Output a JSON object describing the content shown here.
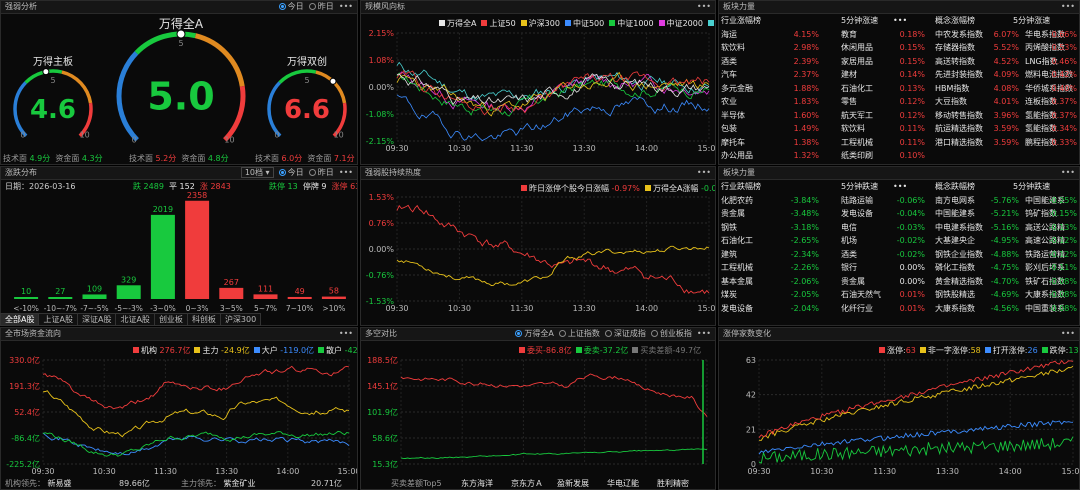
{
  "p1": {
    "title": "强弱分析",
    "today": "今日",
    "yesterday": "昨日",
    "gauges": [
      {
        "title": "万得主板",
        "value": "4.6",
        "color": "#18c93e",
        "level": 0.46,
        "zero": "0",
        "five": "5",
        "ten": "10"
      },
      {
        "title": "万得全A",
        "value": "5.0",
        "color": "#18c93e",
        "level": 0.5,
        "zero": "0",
        "five": "5",
        "ten": "10"
      },
      {
        "title": "万得双创",
        "value": "6.6",
        "color": "#f03c3c",
        "level": 0.66,
        "zero": "0",
        "five": "5",
        "ten": "10"
      }
    ],
    "foot": [
      {
        "tech": "技术面",
        "tv": "4.9分",
        "fund": "资金面",
        "fv": "4.3分",
        "tc": "#18c93e",
        "fc": "#18c93e"
      },
      {
        "tech": "技术面",
        "tv": "5.2分",
        "fund": "资金面",
        "fv": "4.8分",
        "tc": "#f03c3c",
        "fc": "#18c93e"
      },
      {
        "tech": "技术面",
        "tv": "6.0分",
        "fund": "资金面",
        "fv": "7.1分",
        "tc": "#f03c3c",
        "fc": "#f03c3c"
      }
    ]
  },
  "p2": {
    "title": "规模风向标",
    "legend": [
      {
        "name": "万得全A",
        "color": "#e6e6e6"
      },
      {
        "name": "上证50",
        "color": "#f03c3c"
      },
      {
        "name": "沪深300",
        "color": "#e8c21a"
      },
      {
        "name": "中证500",
        "color": "#3c8cff"
      },
      {
        "name": "中证1000",
        "color": "#18c93e"
      },
      {
        "name": "中证2000",
        "color": "#e03ce0"
      },
      {
        "name": "微盘股",
        "color": "#4ad0d0"
      }
    ],
    "yticks": [
      "2.15%",
      "1.08%",
      "0.00%",
      "-1.08%",
      "-2.15%"
    ],
    "xticks": [
      "09:30",
      "10:30",
      "11:30",
      "13:30",
      "14:00",
      "15:00"
    ]
  },
  "p3": {
    "title": "板块力量",
    "h": [
      "行业涨幅榜",
      "5分钟涨速",
      "概念涨幅榜",
      "5分钟涨速"
    ],
    "rows": [
      [
        "海运",
        "4.15%",
        "教育",
        "0.18%",
        "中农发系指数",
        "6.07%",
        "华电系指数",
        "0.66%"
      ],
      [
        "软饮料",
        "2.98%",
        "休闲用品",
        "0.15%",
        "存储器指数",
        "5.52%",
        "丙烯酸指数",
        "0.53%"
      ],
      [
        "酒类",
        "2.39%",
        "家居用品",
        "0.15%",
        "高送转指数",
        "4.52%",
        "LNG指数",
        "0.46%"
      ],
      [
        "汽车",
        "2.37%",
        "建材",
        "0.14%",
        "先进封装指数",
        "4.09%",
        "燃料电池指数",
        "0.42%"
      ],
      [
        "多元金融",
        "1.88%",
        "石油化工",
        "0.13%",
        "HBM指数",
        "4.08%",
        "华侨城系指数",
        "0.40%"
      ],
      [
        "农业",
        "1.83%",
        "零售",
        "0.12%",
        "大豆指数",
        "4.01%",
        "连板指数",
        "0.37%"
      ],
      [
        "半导体",
        "1.60%",
        "航天军工",
        "0.12%",
        "移动转售指数",
        "3.96%",
        "氢能指数",
        "0.37%"
      ],
      [
        "包装",
        "1.49%",
        "软饮料",
        "0.11%",
        "航运精选指数",
        "3.59%",
        "氢能指数",
        "0.34%"
      ],
      [
        "摩托车",
        "1.38%",
        "工程机械",
        "0.11%",
        "港口精选指数",
        "3.59%",
        "鹏程指数",
        "0.33%"
      ],
      [
        "办公用品",
        "1.32%",
        "纸类印刷",
        "0.10%",
        "",
        "",
        "",
        ""
      ]
    ]
  },
  "p4": {
    "title": "涨跌分布",
    "sel": "10档",
    "today": "今日",
    "yesterday": "昨日",
    "date": "日期：2026-03-16",
    "down_l": "跌",
    "down": "2489",
    "flat_l": "平",
    "flat": "152",
    "up_l": "涨",
    "up": "2843",
    "lim_down_l": "跌停",
    "lim_down": "13",
    "halt_l": "停牌",
    "halt": "9",
    "lim_up_l": "涨停",
    "lim_up": "63",
    "bars": [
      {
        "label": "<-10%",
        "value": 10,
        "txt": "10",
        "color": "#18c93e"
      },
      {
        "label": "-10~-7%",
        "value": 27,
        "txt": "27",
        "color": "#18c93e"
      },
      {
        "label": "-7~-5%",
        "value": 109,
        "txt": "109",
        "color": "#18c93e"
      },
      {
        "label": "-5~-3%",
        "value": 329,
        "txt": "329",
        "color": "#18c93e"
      },
      {
        "label": "-3~0%",
        "value": 2019,
        "txt": "2019",
        "color": "#18c93e"
      },
      {
        "label": "0~3%",
        "value": 2358,
        "txt": "2358",
        "color": "#f03c3c"
      },
      {
        "label": "3~5%",
        "value": 267,
        "txt": "267",
        "color": "#f03c3c"
      },
      {
        "label": "5~7%",
        "value": 111,
        "txt": "111",
        "color": "#f03c3c"
      },
      {
        "label": "7~10%",
        "value": 49,
        "txt": "49",
        "color": "#f03c3c"
      },
      {
        "label": ">10%",
        "value": 58,
        "txt": "58",
        "color": "#f03c3c"
      }
    ],
    "tabs": [
      "全部A股",
      "上证A股",
      "深证A股",
      "北证A股",
      "创业板",
      "科创板",
      "沪深300"
    ]
  },
  "p5": {
    "title": "强弱股持续热度",
    "l1": "昨日涨停个股今日涨幅",
    "v1": "-0.97%",
    "l2": "万得全A涨幅",
    "v2": "-0.05%",
    "yticks": [
      "1.53%",
      "0.76%",
      "0.00%",
      "-0.76%",
      "-1.53%"
    ],
    "xticks": [
      "09:30",
      "10:30",
      "11:30",
      "13:30",
      "14:00",
      "15:00"
    ]
  },
  "p6": {
    "title": "板块力量",
    "h": [
      "行业跌幅榜",
      "5分钟跌速",
      "概念跌幅榜",
      "5分钟跌速"
    ],
    "rows": [
      [
        "化肥农药",
        "-3.84%",
        "陆路运输",
        "-0.06%",
        "南方电网系",
        "-5.76%",
        "中国能建系",
        "-0.25%"
      ],
      [
        "贵金属",
        "-3.48%",
        "发电设备",
        "-0.04%",
        "中国能建系",
        "-5.21%",
        "钨矿指数",
        "-0.15%"
      ],
      [
        "钢铁",
        "-3.18%",
        "电信",
        "-0.03%",
        "中电建系指数",
        "-5.16%",
        "高送公路精",
        "-0.13%"
      ],
      [
        "石油化工",
        "-2.65%",
        "机场",
        "-0.02%",
        "大基建央企",
        "-4.95%",
        "高速公路精",
        "-0.12%"
      ],
      [
        "建筑",
        "-2.34%",
        "酒类",
        "-0.02%",
        "钢铁企业指数",
        "-4.88%",
        "铁路运营精",
        "-0.12%"
      ],
      [
        "工程机械",
        "-2.26%",
        "银行",
        "0.00%",
        "磷化工指数",
        "-4.75%",
        "影刈后坏系",
        "-0.11%"
      ],
      [
        "基本金属",
        "-2.06%",
        "贵金属",
        "0.00%",
        "黄金精选指数",
        "-4.70%",
        "铁矿石指数",
        "-0.08%"
      ],
      [
        "煤炭",
        "-2.05%",
        "石油天然气",
        "0.01%",
        "钢铁股精选",
        "-4.69%",
        "大康系指数",
        "-0.08%"
      ],
      [
        "发电设备",
        "-2.04%",
        "化纤行业",
        "0.01%",
        "大康系指数",
        "-4.56%",
        "中国重装系",
        "-0.08%"
      ],
      [
        "",
        "",
        "",
        "",
        "",
        "",
        "",
        ""
      ]
    ]
  },
  "p7": {
    "title": "全市场资金流向",
    "legend": [
      {
        "name": "机构",
        "val": "276.7亿",
        "color": "#f03c3c"
      },
      {
        "name": "主力",
        "val": "-24.9亿",
        "color": "#e8c21a"
      },
      {
        "name": "大户",
        "val": "-119.0亿",
        "color": "#3c8cff"
      },
      {
        "name": "散户",
        "val": "-42.6亿",
        "color": "#18c93e"
      }
    ],
    "yticks": [
      "330.0亿",
      "191.3亿",
      "52.4亿",
      "-86.4亿",
      "-225.2亿"
    ],
    "xticks": [
      "09:30",
      "10:30",
      "11:30",
      "13:30",
      "14:00",
      "15:00"
    ],
    "f1": "机构领先：",
    "f1n": "新易盛",
    "f1v": "89.66亿",
    "f2": "主力领先：",
    "f2n": "紫金矿业",
    "f2v": "20.71亿"
  },
  "p8": {
    "title": "多空对比",
    "radios": [
      "万得全A",
      "上证指数",
      "深证成指",
      "创业板指"
    ],
    "legend": [
      {
        "name": "委买",
        "val": "86.8亿",
        "color": "#f03c3c"
      },
      {
        "name": "委卖",
        "val": "37.2亿",
        "color": "#18c93e"
      },
      {
        "name": "买卖差额",
        "val": "49.7亿",
        "color": "#777777"
      }
    ],
    "yticks": [
      "188.5亿",
      "145.1亿",
      "101.9亿",
      "58.6亿",
      "15.3亿"
    ],
    "foot": [
      "买卖差额Top5",
      "东方海洋",
      "京东方Ａ",
      "盈新发展",
      "华电辽能",
      "胜利精密"
    ]
  },
  "p9": {
    "title": "涨停家数变化",
    "legend": [
      {
        "name": "涨停",
        "val": "63",
        "color": "#f03c3c"
      },
      {
        "name": "非一字涨停",
        "val": "58",
        "color": "#e8c21a"
      },
      {
        "name": "打开涨停",
        "val": "26",
        "color": "#3c8cff"
      },
      {
        "name": "跌停",
        "val": "13",
        "color": "#18c93e"
      }
    ],
    "yticks": [
      "63",
      "42",
      "21",
      "0"
    ],
    "xticks": [
      "09:30",
      "10:30",
      "11:30",
      "13:30",
      "14:00",
      "15:00"
    ]
  }
}
